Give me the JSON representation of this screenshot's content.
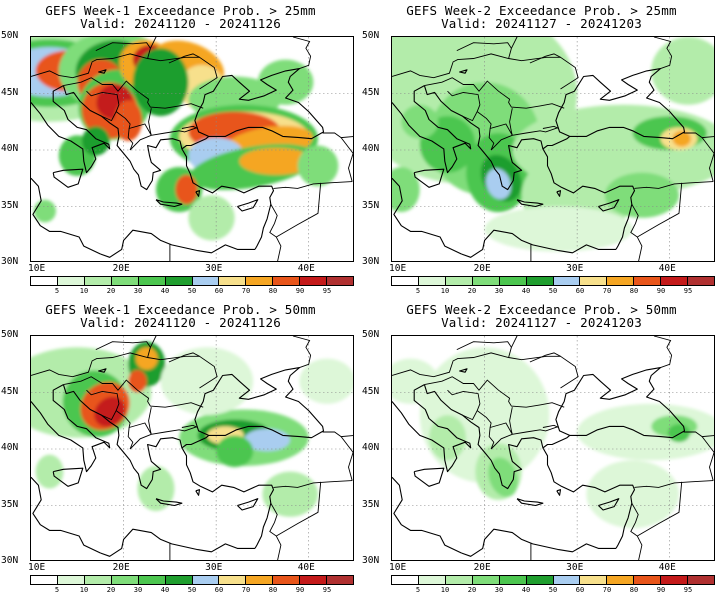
{
  "panels": [
    {
      "title": "GEFS Week-1 Exceedance Prob. > 25mm",
      "valid": "Valid: 20241120 - 20241126"
    },
    {
      "title": "GEFS Week-2 Exceedance Prob. > 25mm",
      "valid": "Valid: 20241127 - 20241203"
    },
    {
      "title": "GEFS Week-1 Exceedance Prob. > 50mm",
      "valid": "Valid: 20241120 - 20241126"
    },
    {
      "title": "GEFS Week-2 Exceedance Prob. > 50mm",
      "valid": "Valid: 20241127 - 20241203"
    }
  ],
  "lat_labels": [
    "50N",
    "45N",
    "40N",
    "35N",
    "30N"
  ],
  "lon_labels": [
    "10E",
    "20E",
    "30E",
    "40E"
  ],
  "colorbar": {
    "levels": [
      "5",
      "10",
      "20",
      "30",
      "40",
      "50",
      "60",
      "70",
      "80",
      "90",
      "95"
    ],
    "colors": [
      "#ffffff",
      "#ddf7d8",
      "#b3ecaa",
      "#7fdd7a",
      "#4cc64f",
      "#1f9e2e",
      "#a9cdf0",
      "#f7e08c",
      "#f5a623",
      "#e8551a",
      "#c41a1a",
      "#b03030"
    ]
  }
}
